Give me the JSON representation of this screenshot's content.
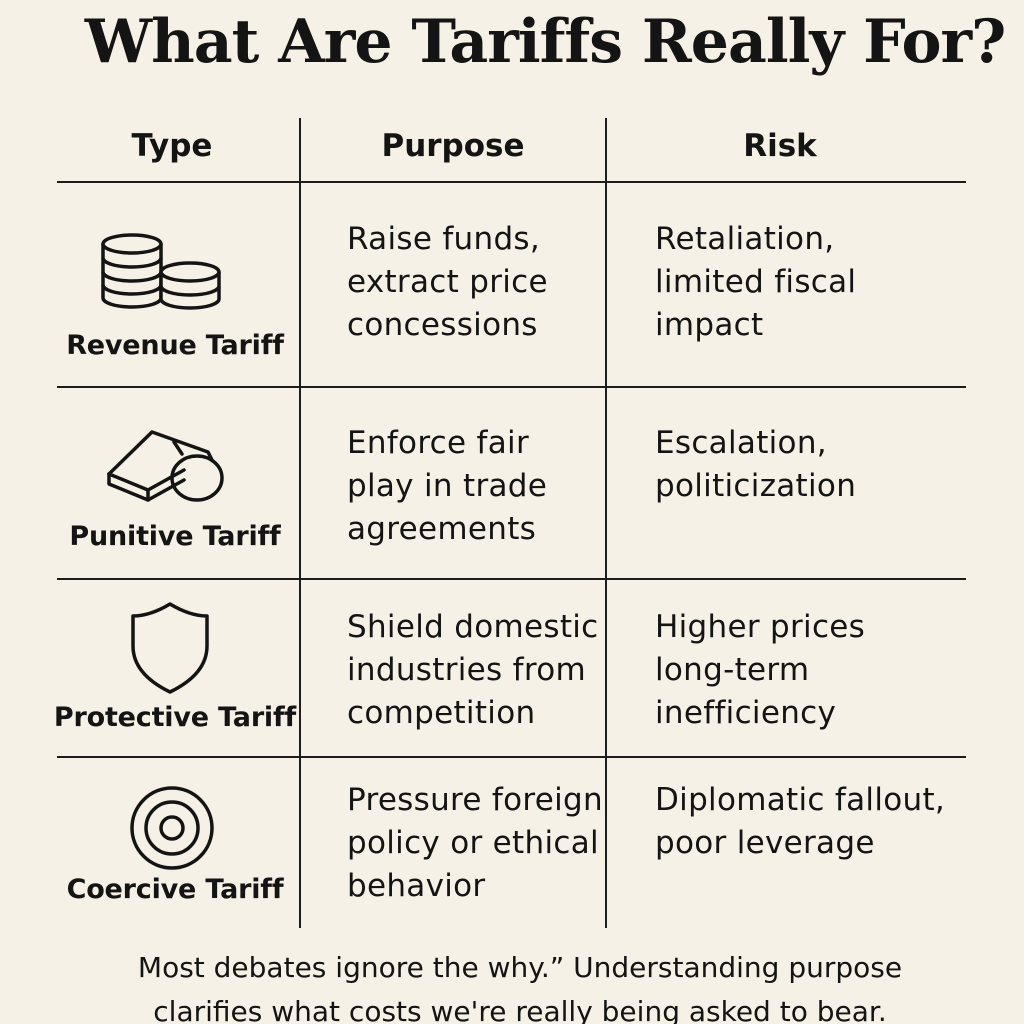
{
  "title": "What Are Tariffs Really For?",
  "table": {
    "headers": {
      "type": "Type",
      "purpose": "Purpose",
      "risk": "Risk"
    },
    "rows": [
      {
        "icon": "coins-icon",
        "type": "Revenue Tariff",
        "purpose_lines": [
          "Raise funds,",
          "extract price",
          "concessions"
        ],
        "risk_lines": [
          "Retaliation,",
          "limited fiscal",
          "impact"
        ]
      },
      {
        "icon": "whistle-icon",
        "type": "Punitive Tariff",
        "purpose_lines": [
          "Enforce fair",
          "play in trade",
          "agreements"
        ],
        "risk_lines": [
          "Escalation,",
          "politicization"
        ]
      },
      {
        "icon": "shield-icon",
        "type": "Protective Tariff",
        "purpose_lines": [
          "Shield domestic",
          "industries from",
          "competition"
        ],
        "risk_lines": [
          "Higher prices",
          "long-term",
          "inefficiency"
        ]
      },
      {
        "icon": "target-icon",
        "type": "Coercive Tariff",
        "purpose_lines": [
          "Pressure foreign",
          "policy or ethical",
          "behavior"
        ],
        "risk_lines": [
          "Diplomatic fallout,",
          "poor leverage"
        ]
      }
    ]
  },
  "footer_lines": [
    "Most debates ignore the why.” Understanding purpose",
    "clarifies what costs we're really being asked to bear."
  ]
}
